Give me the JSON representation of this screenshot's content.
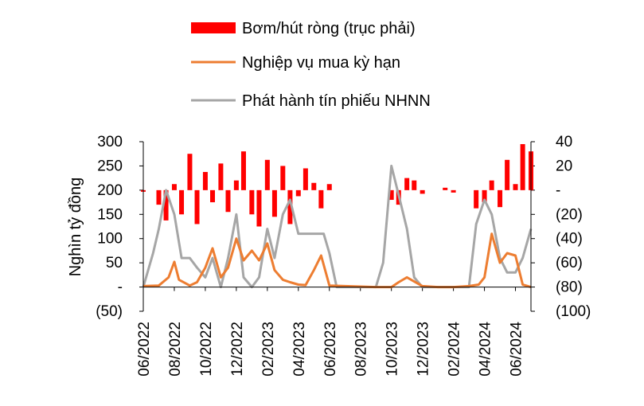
{
  "colors": {
    "net": "#ff0000",
    "repo": "#ed7d31",
    "bills": "#a6a6a6",
    "axis": "#000000"
  },
  "chart_data": {
    "type": "bar+line",
    "ylabel": "Nghìn tỷ đồng",
    "left_axis": {
      "ylim": [
        -50,
        300
      ],
      "ticks": [
        300,
        250,
        200,
        150,
        100,
        50,
        0,
        -50
      ],
      "tick_labels": [
        "300",
        "250",
        "200",
        "150",
        "100",
        "50",
        "-",
        "(50)"
      ]
    },
    "right_axis": {
      "ylim": [
        -100,
        40
      ],
      "ticks": [
        40,
        20,
        0,
        -20,
        -40,
        -60,
        -80,
        -100
      ],
      "tick_labels": [
        "40",
        "20",
        "-",
        "(20)",
        "(40)",
        "(60)",
        "(80)",
        "(100)"
      ]
    },
    "x_axis": {
      "range": [
        "2022-06",
        "2024-07"
      ],
      "ticks": [
        "06/2022",
        "08/2022",
        "10/2022",
        "12/2022",
        "02/2023",
        "04/2023",
        "06/2023",
        "08/2023",
        "10/2023",
        "12/2023",
        "02/2024",
        "04/2024",
        "06/2024"
      ]
    },
    "legend": {
      "position": "top",
      "entries": [
        "Bơm/hút ròng (trục phải)",
        "Nghiệp vụ mua kỳ hạn",
        "Phát hành tín phiếu NHNN"
      ]
    },
    "series": [
      {
        "name": "Bơm/hút ròng (trục phải)",
        "type": "bar",
        "axis": "right",
        "x": [
          "2022-06",
          "2022-07",
          "2022-07-15",
          "2022-08",
          "2022-08-15",
          "2022-09",
          "2022-09-15",
          "2022-10",
          "2022-10-15",
          "2022-11",
          "2022-11-15",
          "2022-12",
          "2022-12-15",
          "2023-01",
          "2023-01-15",
          "2023-02",
          "2023-02-15",
          "2023-03",
          "2023-03-15",
          "2023-04",
          "2023-04-15",
          "2023-05",
          "2023-05-15",
          "2023-06",
          "2023-10",
          "2023-10-15",
          "2023-11",
          "2023-11-15",
          "2023-12",
          "2024-01-15",
          "2024-02",
          "2024-03-15",
          "2024-04",
          "2024-04-15",
          "2024-05",
          "2024-05-15",
          "2024-06",
          "2024-06-15",
          "2024-07"
        ],
        "values": [
          0,
          -12,
          -25,
          5,
          -20,
          30,
          -28,
          15,
          -10,
          22,
          -18,
          8,
          32,
          -20,
          -30,
          25,
          -22,
          20,
          -28,
          -5,
          18,
          6,
          -15,
          5,
          -8,
          -12,
          10,
          8,
          -3,
          2,
          -2,
          -15,
          -10,
          8,
          -14,
          25,
          5,
          38,
          32
        ]
      },
      {
        "name": "Nghiệp vụ mua kỳ hạn",
        "type": "line",
        "axis": "left",
        "x": [
          "2022-06",
          "2022-07",
          "2022-07-20",
          "2022-08",
          "2022-08-10",
          "2022-09",
          "2022-09-15",
          "2022-10",
          "2022-10-15",
          "2022-11",
          "2022-11-15",
          "2022-12",
          "2022-12-15",
          "2023-01",
          "2023-01-15",
          "2023-02",
          "2023-02-15",
          "2023-03",
          "2023-03-15",
          "2023-04",
          "2023-04-15",
          "2023-05",
          "2023-05-15",
          "2023-06",
          "2023-09",
          "2023-10",
          "2023-10-15",
          "2023-11",
          "2023-12",
          "2024-01",
          "2024-02",
          "2024-03",
          "2024-03-20",
          "2024-04",
          "2024-04-15",
          "2024-05",
          "2024-05-15",
          "2024-06",
          "2024-06-15",
          "2024-07"
        ],
        "values": [
          2,
          3,
          20,
          52,
          15,
          3,
          10,
          40,
          80,
          20,
          40,
          100,
          55,
          75,
          55,
          90,
          35,
          15,
          10,
          5,
          4,
          35,
          65,
          3,
          0,
          0,
          10,
          20,
          2,
          0,
          0,
          2,
          5,
          20,
          110,
          50,
          70,
          65,
          5,
          0
        ]
      },
      {
        "name": "Phát hành tín phiếu NHNN",
        "type": "line",
        "axis": "left",
        "x": [
          "2022-06",
          "2022-06-20",
          "2022-07",
          "2022-07-15",
          "2022-08",
          "2022-08-15",
          "2022-09",
          "2022-09-15",
          "2022-10",
          "2022-10-15",
          "2022-11",
          "2022-11-15",
          "2022-12",
          "2022-12-15",
          "2023-01",
          "2023-01-15",
          "2023-02",
          "2023-02-15",
          "2023-03",
          "2023-03-15",
          "2023-04",
          "2023-05",
          "2023-05-20",
          "2023-06",
          "2023-06-15",
          "2023-09",
          "2023-09-15",
          "2023-10",
          "2023-10-15",
          "2023-11",
          "2023-11-15",
          "2023-12",
          "2023-12-15",
          "2024-03",
          "2024-03-15",
          "2024-04",
          "2024-04-15",
          "2024-05",
          "2024-05-15",
          "2024-06",
          "2024-06-15",
          "2024-07"
        ],
        "values": [
          0,
          70,
          120,
          200,
          150,
          60,
          60,
          40,
          20,
          60,
          0,
          60,
          150,
          20,
          0,
          20,
          120,
          60,
          150,
          180,
          110,
          110,
          110,
          70,
          0,
          0,
          50,
          250,
          190,
          120,
          20,
          0,
          0,
          0,
          130,
          180,
          150,
          60,
          30,
          30,
          60,
          120
        ]
      }
    ]
  }
}
